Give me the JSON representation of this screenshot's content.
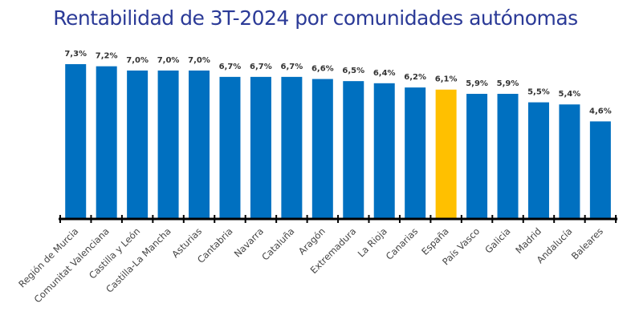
{
  "chart_data": {
    "type": "bar",
    "title": "Rentabilidad de 3T-2024 por comunidades autónomas",
    "xlabel": "",
    "ylabel": "",
    "categories": [
      "Región de Murcia",
      "Comunitat Valenciana",
      "Castilla y León",
      "Castilla-La Mancha",
      "Asturias",
      "Cantabria",
      "Navarra",
      "Cataluña",
      "Aragón",
      "Extremadura",
      "La Rioja",
      "Canarias",
      "España",
      "País Vasco",
      "Galicia",
      "Madrid",
      "Andalucía",
      "Baleares"
    ],
    "values": [
      7.3,
      7.2,
      7.0,
      7.0,
      7.0,
      6.7,
      6.7,
      6.7,
      6.6,
      6.5,
      6.4,
      6.2,
      6.1,
      5.9,
      5.9,
      5.5,
      5.4,
      4.6
    ],
    "data_labels": [
      "7,3%",
      "7,2%",
      "7,0%",
      "7,0%",
      "7,0%",
      "6,7%",
      "6,7%",
      "6,7%",
      "6,6%",
      "6,5%",
      "6,4%",
      "6,2%",
      "6,1%",
      "5,9%",
      "5,9%",
      "5,5%",
      "5,4%",
      "4,6%"
    ],
    "ylim": [
      0,
      7.3
    ],
    "grid": false,
    "legend": "none",
    "colors": {
      "default": "#0070C0",
      "highlight": "#FFC000",
      "highlight_category": "España",
      "title": "#2b3a97"
    }
  }
}
